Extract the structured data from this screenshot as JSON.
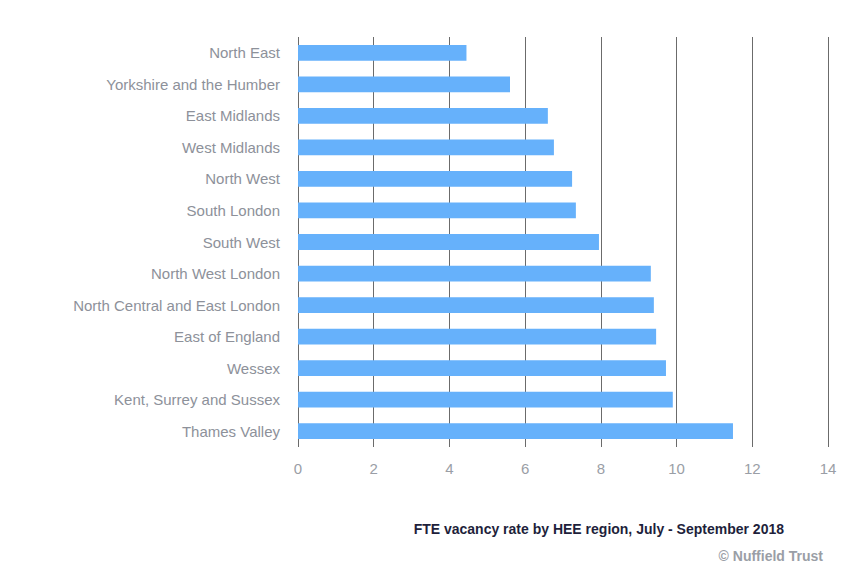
{
  "chart_data": {
    "type": "bar",
    "orientation": "horizontal",
    "title": "FTE vacancy rate by HEE region, July - September 2018",
    "annotations": [
      "© Nuffield Trust"
    ],
    "categories": [
      "North East",
      "Yorkshire and the Humber",
      "East Midlands",
      "West Midlands",
      "North West",
      "South London",
      "South West",
      "North West London",
      "North Central and East London",
      "East of England",
      "Wessex",
      "Kent, Surrey and Sussex",
      "Thames Valley"
    ],
    "values": [
      4.45,
      5.6,
      6.6,
      6.76,
      7.24,
      7.34,
      7.95,
      9.32,
      9.4,
      9.46,
      9.72,
      9.9,
      11.49
    ],
    "color": "#66b1fb",
    "xlim": [
      0,
      14
    ],
    "xticks": [
      0,
      2,
      4,
      6,
      8,
      10,
      12,
      14
    ],
    "grid": true
  }
}
